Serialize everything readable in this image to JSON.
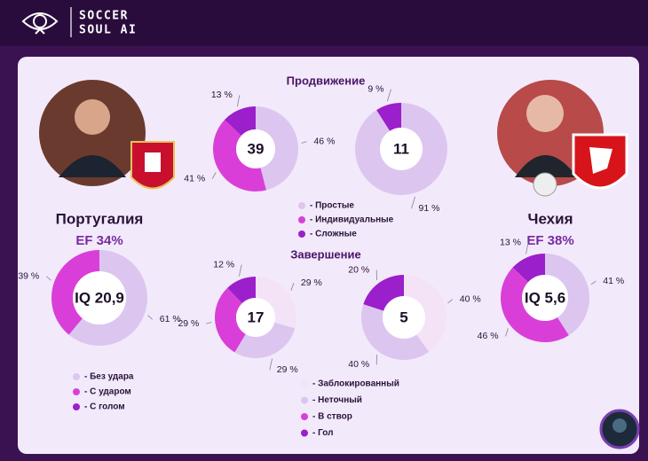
{
  "header": {
    "line1": "SOCCER",
    "line2": "SOUL AI"
  },
  "teams": [
    {
      "name": "Португалия",
      "ef": "EF  34%"
    },
    {
      "name": "Чехия",
      "ef": "EF  38%"
    }
  ],
  "chart_data": [
    {
      "type": "donut",
      "title": "Продвижение",
      "categories": [
        "- Простые",
        "- Индивидуальные",
        "- Сложные"
      ],
      "colors": [
        "#dcc6f0",
        "#d93fd8",
        "#9b1fca"
      ],
      "series": [
        {
          "center": "39",
          "values": [
            46,
            41,
            13
          ],
          "value_labels": [
            "46 %",
            "41 %",
            "13 %"
          ]
        },
        {
          "center": "11",
          "values": [
            91,
            0,
            9
          ],
          "value_labels": [
            "91 %",
            null,
            "9 %"
          ]
        }
      ]
    },
    {
      "type": "donut",
      "title": "Завершение",
      "categories": [
        "- Заблокированный",
        "- Неточный",
        "- В створ",
        "- Гол"
      ],
      "colors": [
        "#f4e2f7",
        "#dcc6f0",
        "#d93fd8",
        "#9b1fca"
      ],
      "series": [
        {
          "center": "17",
          "values": [
            29,
            29,
            29,
            12
          ],
          "value_labels": [
            "29 %",
            "29 %",
            "29 %",
            "12 %"
          ]
        },
        {
          "center": "5",
          "values": [
            40,
            40,
            0,
            20
          ],
          "value_labels": [
            "40 %",
            "40 %",
            null,
            "20 %"
          ]
        }
      ]
    },
    {
      "type": "donut",
      "categories": [
        "- Без удара",
        "- С ударом",
        "- С голом"
      ],
      "colors": [
        "#dcc6f0",
        "#d93fd8",
        "#9b1fca"
      ],
      "series": [
        {
          "center": "IQ 20,9",
          "values": [
            61,
            39,
            0
          ],
          "value_labels": [
            "61 %",
            "39 %",
            null
          ]
        },
        {
          "center": "IQ 5,6",
          "values": [
            41,
            46,
            13
          ],
          "value_labels": [
            "41 %",
            "46 %",
            "13 %"
          ]
        }
      ]
    }
  ]
}
